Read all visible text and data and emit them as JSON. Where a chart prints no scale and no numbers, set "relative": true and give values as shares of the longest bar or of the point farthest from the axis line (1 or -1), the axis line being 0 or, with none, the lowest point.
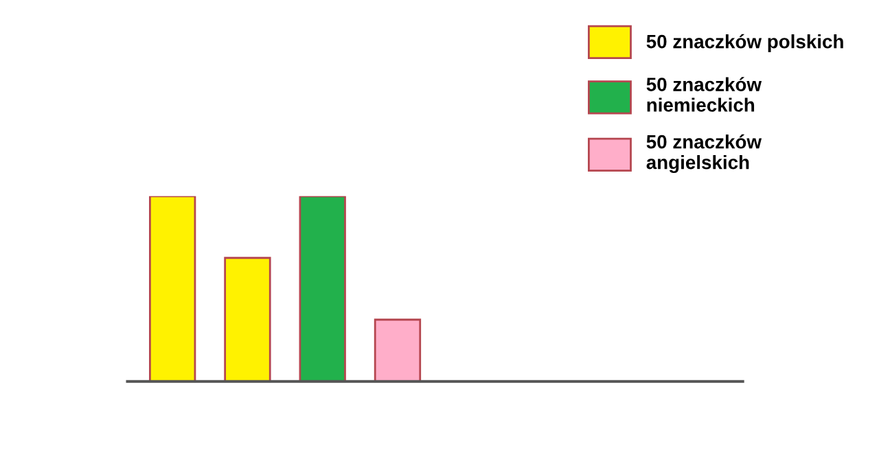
{
  "chart_data": {
    "type": "bar",
    "relative": true,
    "categories": [
      null,
      null,
      null,
      null
    ],
    "series": [
      {
        "name": "50 znaczków polskich",
        "color": "#fff200",
        "values": [
          1,
          0.6667,
          null,
          null
        ]
      },
      {
        "name": "50 znaczków\nniemieckich",
        "color": "#22b14c",
        "values": [
          null,
          null,
          1,
          null
        ]
      },
      {
        "name": "50 znaczków\nangielskich",
        "color": "#ffaec9",
        "values": [
          null,
          null,
          null,
          0.3333
        ]
      }
    ],
    "stacked": true,
    "legend": "top right",
    "grid": false
  }
}
